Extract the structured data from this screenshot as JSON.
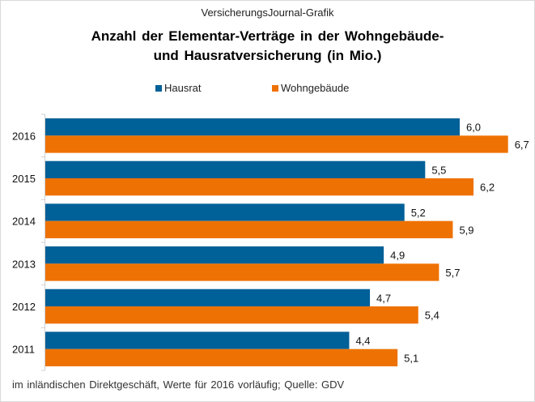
{
  "header": {
    "source_label": "VersicherungsJournal-Grafik"
  },
  "chart_data": {
    "type": "bar",
    "orientation": "horizontal",
    "title": "Anzahl der Elementar-Verträge in der Wohngebäude- und Hausratversicherung (in Mio.)",
    "title_lines": [
      "Anzahl der Elementar-Verträge in der Wohngebäude-",
      "und Hausratversicherung (in Mio.)"
    ],
    "categories": [
      "2016",
      "2015",
      "2014",
      "2013",
      "2012",
      "2011"
    ],
    "series": [
      {
        "name": "Hausrat",
        "color": "#006098",
        "values": [
          6.0,
          5.5,
          5.2,
          4.9,
          4.7,
          4.4
        ],
        "labels": [
          "6,0",
          "5,5",
          "5,2",
          "4,9",
          "4,7",
          "4,4"
        ]
      },
      {
        "name": "Wohngebäude",
        "color": "#ee7203",
        "values": [
          6.7,
          6.2,
          5.9,
          5.7,
          5.4,
          5.1
        ],
        "labels": [
          "6,7",
          "6,2",
          "5,9",
          "5,7",
          "5,4",
          "5,1"
        ]
      }
    ],
    "xlim": [
      0,
      7.2
    ],
    "legend": "top",
    "grid": false,
    "footnote": "im inländischen Direktgeschäft, Werte für 2016 vorläufig; Quelle: GDV"
  }
}
